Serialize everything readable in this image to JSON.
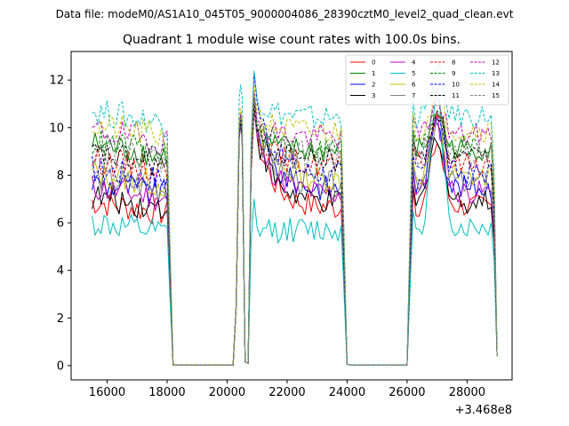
{
  "chart_data": {
    "type": "line",
    "suptitle": "Data file: modeM0/AS1A10_045T05_9000004086_28390cztM0_level2_quad_clean.evt",
    "title": "Quadrant 1 module wise count rates with 100.0s bins.",
    "xlabel": "",
    "ylabel": "",
    "x_offset_label": "+3.468e8",
    "xlim": [
      14800,
      29500
    ],
    "ylim": [
      -0.6,
      13.2
    ],
    "xticks": [
      16000,
      18000,
      20000,
      22000,
      24000,
      26000,
      28000
    ],
    "xtick_labels": [
      "16000",
      "18000",
      "20000",
      "22000",
      "24000",
      "26000",
      "28000"
    ],
    "yticks": [
      0,
      2,
      4,
      6,
      8,
      10,
      12
    ],
    "ytick_labels": [
      "0",
      "2",
      "4",
      "6",
      "8",
      "10",
      "12"
    ],
    "legend": {
      "position": "top-right",
      "columns": 4,
      "entries": [
        "0",
        "1",
        "2",
        "3",
        "4",
        "5",
        "6",
        "7",
        "8",
        "9",
        "10",
        "11",
        "12",
        "13",
        "14",
        "15"
      ]
    },
    "bin_width_s": 100,
    "segments": [
      {
        "x_start": 15500,
        "x_end": 18200
      },
      {
        "x_start": 18200,
        "x_end": 20200
      },
      {
        "x_start": 20200,
        "x_end": 20600
      },
      {
        "x_start": 20600,
        "x_end": 20800
      },
      {
        "x_start": 20800,
        "x_end": 23900
      },
      {
        "x_start": 23900,
        "x_end": 26000
      },
      {
        "x_start": 26000,
        "x_end": 28900
      }
    ],
    "series": [
      {
        "name": "0",
        "color": "#ff0000",
        "dash": "solid",
        "level": 6.4,
        "peak1": 10.2,
        "peak2": 10.8,
        "peak3": 9.1
      },
      {
        "name": "1",
        "color": "#008000",
        "dash": "solid",
        "level": 8.8,
        "peak1": 10.5,
        "peak2": 11.0,
        "peak3": 10.5
      },
      {
        "name": "2",
        "color": "#0000ff",
        "dash": "solid",
        "level": 7.2,
        "peak1": 10.3,
        "peak2": 11.2,
        "peak3": 10.2
      },
      {
        "name": "3",
        "color": "#000000",
        "dash": "solid",
        "level": 6.6,
        "peak1": 10.1,
        "peak2": 10.9,
        "peak3": 9.5
      },
      {
        "name": "4",
        "color": "#bf00bf",
        "dash": "solid",
        "level": 7.0,
        "peak1": 10.2,
        "peak2": 10.8,
        "peak3": 10.0
      },
      {
        "name": "5",
        "color": "#00bfbf",
        "dash": "solid",
        "level": 5.5,
        "peak1": 10.4,
        "peak2": 7.0,
        "peak3": 10.8
      },
      {
        "name": "6",
        "color": "#bfbf00",
        "dash": "solid",
        "level": 7.6,
        "peak1": 10.3,
        "peak2": 11.1,
        "peak3": 10.1
      },
      {
        "name": "7",
        "color": "#808080",
        "dash": "solid",
        "level": 7.4,
        "peak1": 10.2,
        "peak2": 10.9,
        "peak3": 10.2
      },
      {
        "name": "8",
        "color": "#ff0000",
        "dash": "dashed",
        "level": 8.2,
        "peak1": 10.4,
        "peak2": 11.1,
        "peak3": 10.3
      },
      {
        "name": "9",
        "color": "#008000",
        "dash": "dashed",
        "level": 8.9,
        "peak1": 10.5,
        "peak2": 11.3,
        "peak3": 10.6
      },
      {
        "name": "10",
        "color": "#0000ff",
        "dash": "dashed",
        "level": 7.8,
        "peak1": 10.3,
        "peak2": 12.3,
        "peak3": 10.4
      },
      {
        "name": "11",
        "color": "#000000",
        "dash": "dashed",
        "level": 8.4,
        "peak1": 10.3,
        "peak2": 11.0,
        "peak3": 10.5
      },
      {
        "name": "12",
        "color": "#bf00bf",
        "dash": "dashed",
        "level": 9.4,
        "peak1": 10.6,
        "peak2": 11.5,
        "peak3": 11.0
      },
      {
        "name": "13",
        "color": "#00bfbf",
        "dash": "dashed",
        "level": 10.2,
        "peak1": 11.8,
        "peak2": 12.4,
        "peak3": 12.0
      },
      {
        "name": "14",
        "color": "#bfbf00",
        "dash": "dashed",
        "level": 9.6,
        "peak1": 10.8,
        "peak2": 11.8,
        "peak3": 11.4
      },
      {
        "name": "15",
        "color": "#808080",
        "dash": "dashed",
        "level": 8.6,
        "peak1": 10.4,
        "peak2": 11.2,
        "peak3": 10.6
      }
    ]
  }
}
